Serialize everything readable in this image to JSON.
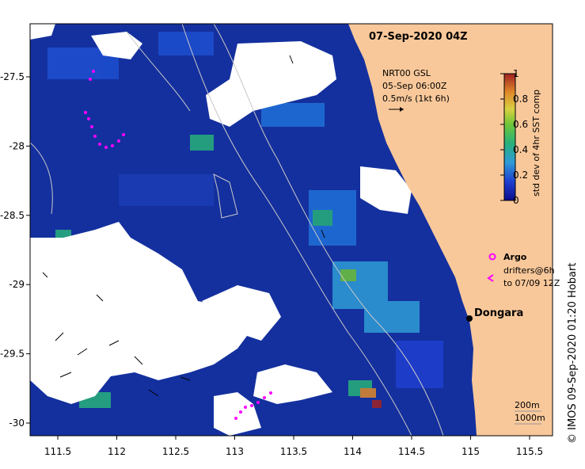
{
  "title": "07-Sep-2020 04Z",
  "current_label": {
    "line1": "NRT00 GSL",
    "line2": "05-Sep 06:00Z",
    "line3": "0.5m/s (1kt 6h)"
  },
  "colorbar": {
    "label": "std dev of 4hr SST comp",
    "ticks": [
      "0",
      "0.2",
      "0.4",
      "0.6",
      "0.8",
      "1"
    ],
    "colors": [
      "#0d0d8c",
      "#1f3fd0",
      "#2f9bd6",
      "#27b07a",
      "#6fc63a",
      "#d8d040",
      "#e08a2a",
      "#a02222"
    ]
  },
  "legend": {
    "argo": "Argo",
    "drifters_line1": "drifters@6h",
    "drifters_line2": "to 07/09 12Z",
    "symbol_color": "#ff00ff"
  },
  "place": {
    "name": "Dongara"
  },
  "scale": {
    "depth1": "200m",
    "depth2": "1000m"
  },
  "credit": "© IMOS 09-Sep-2020 01:20 Hobart",
  "axes": {
    "x_ticks": [
      "111.5",
      "112",
      "112.5",
      "113",
      "113.5",
      "114",
      "114.5",
      "115",
      "115.5"
    ],
    "y_ticks": [
      "-27.5",
      "-28",
      "-28.5",
      "-29",
      "-29.5",
      "-30"
    ]
  },
  "colors": {
    "land": "#f9c89a",
    "ocean_base": "#14309e",
    "cloud": "#ffffff"
  }
}
